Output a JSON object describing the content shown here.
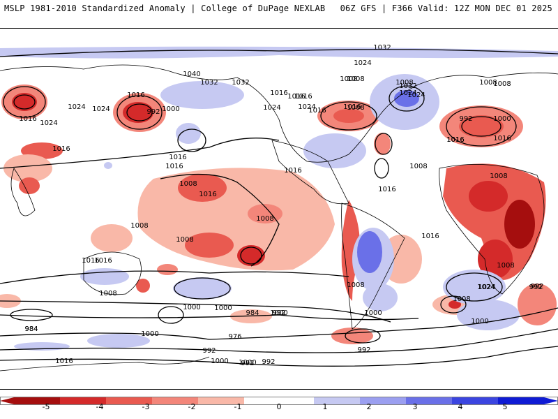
{
  "header": {
    "left_title": "MSLP 1981-2010 Standardized Anomaly | College of DuPage NEXLAB",
    "right_title": "06Z GFS | F366 Valid: 12Z MON DEC 01 2025"
  },
  "map": {
    "isobar_labels": [
      "1032",
      "1024",
      "1040",
      "1032",
      "1032",
      "1016",
      "1024",
      "1024",
      "1024",
      "1016",
      "1008",
      "1000",
      "992",
      "1016",
      "1008",
      "1016",
      "1024",
      "1016",
      "1016",
      "1024",
      "1016",
      "1032",
      "1024",
      "1008",
      "1016",
      "1016",
      "1024",
      "1016",
      "1016",
      "1008",
      "992",
      "1000",
      "1016",
      "1008",
      "1008",
      "1008",
      "1008",
      "1016",
      "1016",
      "1008",
      "1016",
      "1008",
      "1008",
      "1016",
      "1016",
      "1016",
      "1008",
      "1024",
      "992",
      "1008",
      "1016",
      "1000",
      "1008",
      "992",
      "1024",
      "1000",
      "984",
      "992",
      "1000",
      "1008",
      "1000",
      "1000",
      "984",
      "992",
      "984",
      "976",
      "992",
      "1000",
      "992",
      "1016",
      "992",
      "1008",
      "1000",
      "992",
      "1000"
    ],
    "colors": {
      "neg5": "#a50e0e",
      "neg4": "#d42a2a",
      "neg3": "#e95a50",
      "neg2": "#f3867a",
      "neg1": "#f9b8a8",
      "pos1": "#c6c9f2",
      "pos2": "#9b9ff0",
      "pos3": "#6a70e8",
      "pos4": "#3b45e0",
      "pos5": "#0f1bd4",
      "land_outline": "#000000",
      "contour": "#000000"
    }
  },
  "colorbar": {
    "ticks": [
      "-5",
      "-4",
      "-3",
      "-2",
      "-1",
      "0",
      "1",
      "2",
      "3",
      "4",
      "5"
    ]
  }
}
